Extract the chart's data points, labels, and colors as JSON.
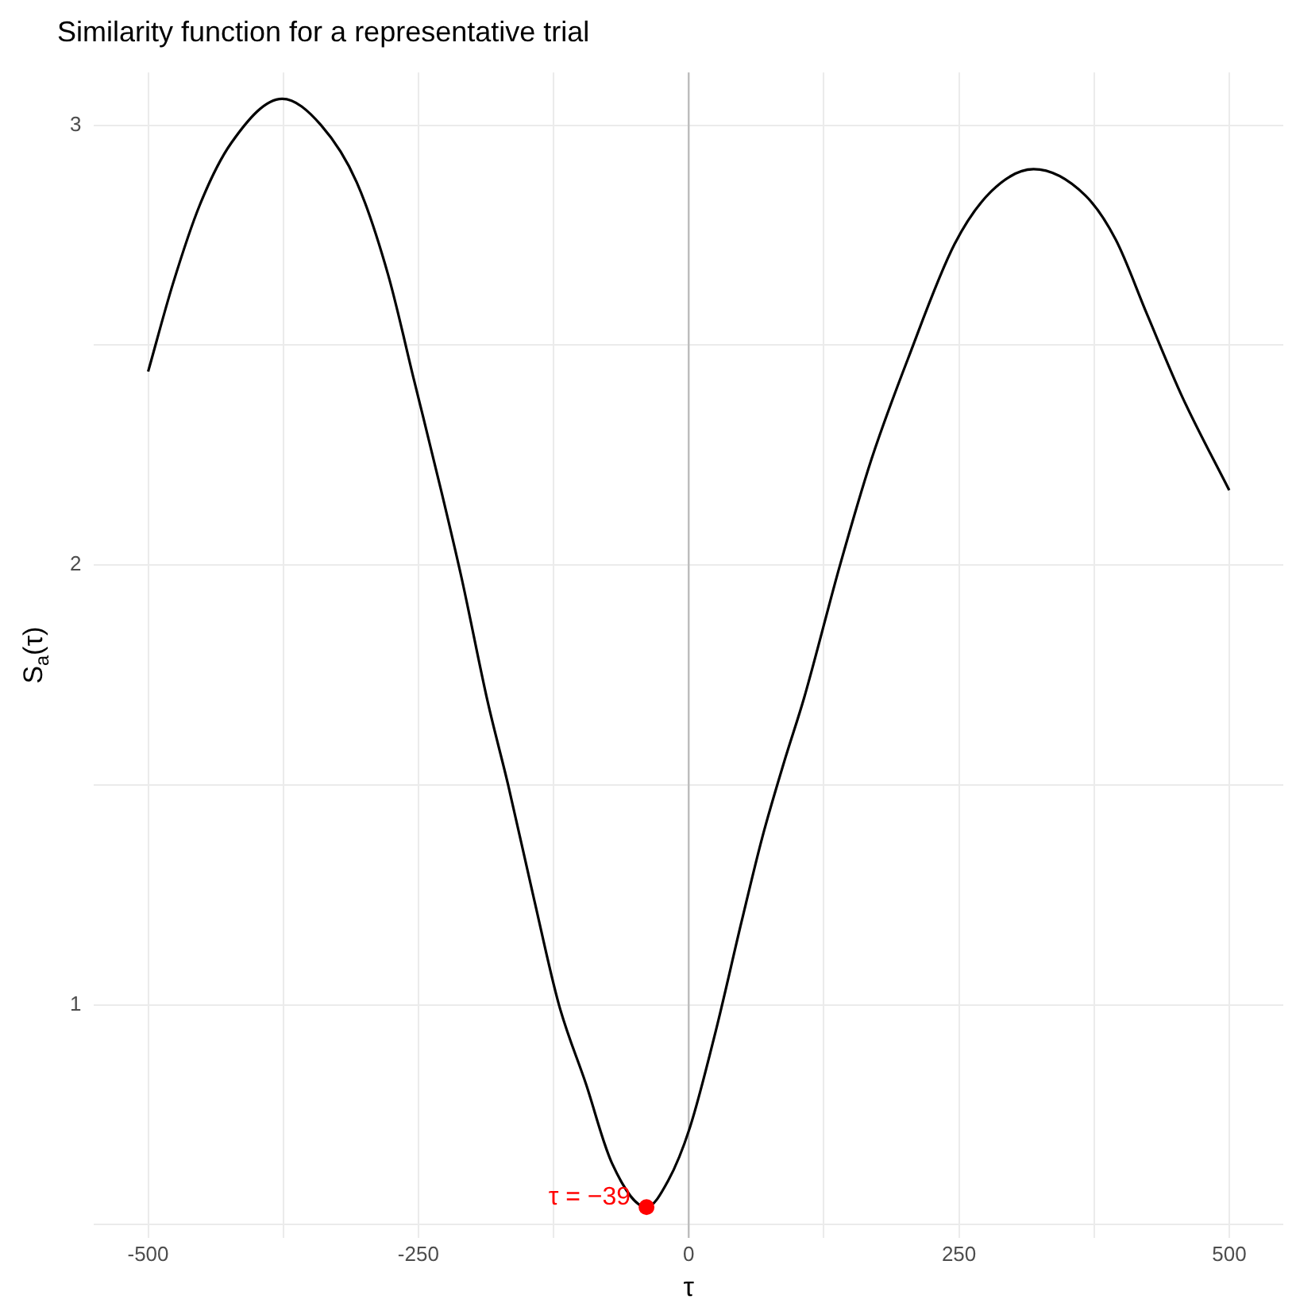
{
  "chart_data": {
    "type": "line",
    "title": "Similarity function for a representative trial",
    "xlabel": "τ",
    "ylabel": "S$_{a}$(τ)",
    "xlim": [
      -550,
      550
    ],
    "ylim": [
      0.47,
      3.12
    ],
    "xticks": [
      -500,
      {
        "value": -375,
        "label": null
      },
      -250,
      {
        "value": -125,
        "label": null
      },
      0,
      {
        "value": 125,
        "label": null
      },
      250,
      {
        "value": 375,
        "label": null
      },
      500
    ],
    "yticks": [
      {
        "value": 0.5,
        "label": null
      },
      1,
      {
        "value": 1.5,
        "label": null
      },
      2,
      {
        "value": 2.5,
        "label": null
      },
      3
    ],
    "grid": true,
    "legend": false,
    "marker": "none",
    "line_style": "solid",
    "ref_lines": [
      {
        "axis": "x",
        "value": 0,
        "color": "#bdbdbd"
      }
    ],
    "annotations": [
      {
        "text": "τ = −39",
        "x": -39,
        "y": 0.54
      }
    ],
    "series": [
      {
        "color": "#000000",
        "x": [
          -500,
          -477,
          -452,
          -423,
          -376,
          -340,
          -307,
          -278,
          -254,
          -229,
          -210,
          -186,
          -167,
          -143,
          -120,
          -95,
          -71,
          -39,
          -19,
          1,
          25,
          49,
          68,
          88,
          107,
          140,
          169,
          203,
          246,
          280,
          319,
          367,
          395,
          424,
          457,
          500
        ],
        "values": [
          2.44,
          2.64,
          2.82,
          2.96,
          3.06,
          3.0,
          2.87,
          2.66,
          2.42,
          2.17,
          1.97,
          1.69,
          1.5,
          1.24,
          1.0,
          0.82,
          0.64,
          0.54,
          0.6,
          0.72,
          0.94,
          1.19,
          1.38,
          1.55,
          1.7,
          2.0,
          2.24,
          2.47,
          2.73,
          2.85,
          2.9,
          2.84,
          2.74,
          2.57,
          2.38,
          2.17
        ]
      },
      {
        "type": "scatter",
        "color": "#ff0000",
        "marker": "circle",
        "x": [
          -39
        ],
        "values": [
          0.54
        ]
      }
    ]
  }
}
